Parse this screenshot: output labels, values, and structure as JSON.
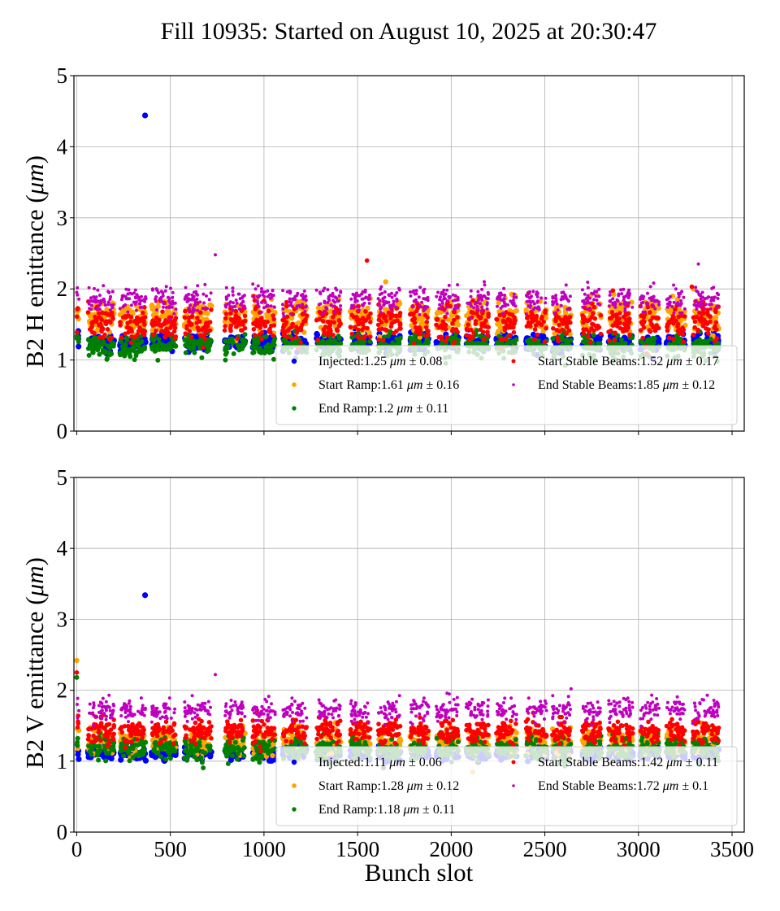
{
  "title": "Fill 10935: Started on August 10, 2025 at 20:30:47",
  "chart_data": [
    {
      "type": "scatter",
      "panel": "top",
      "ylabel_prefix": "B2 H emittance (",
      "ylabel_unit": "μm",
      "ylabel_suffix": ")",
      "xlabel": "",
      "xlim": [
        -15,
        3565
      ],
      "ylim": [
        0,
        5
      ],
      "xticks": [
        0,
        500,
        1000,
        1500,
        2000,
        2500,
        3000,
        3500
      ],
      "xtick_labels_visible": false,
      "yticks": [
        0,
        1,
        2,
        3,
        4,
        5
      ],
      "grid": true,
      "legend_placement": "lower-right",
      "legend_columns": 2,
      "series": [
        {
          "name": "Injected",
          "mean": 1.25,
          "std": 0.08,
          "color": "#0000ff",
          "label_mean": "Injected:1.25 ",
          "label_std": " ± 0.08"
        },
        {
          "name": "Start Ramp",
          "mean": 1.61,
          "std": 0.16,
          "color": "#ffa500",
          "label_mean": "Start Ramp:1.61 ",
          "label_std": " ± 0.16"
        },
        {
          "name": "End Ramp",
          "mean": 1.2,
          "std": 0.11,
          "color": "#008000",
          "label_mean": "End Ramp:1.2 ",
          "label_std": " ± 0.11"
        },
        {
          "name": "Start Stable Beams",
          "mean": 1.52,
          "std": 0.17,
          "color": "#ff0000",
          "label_mean": "Start Stable Beams:1.52 ",
          "label_std": " ± 0.17"
        },
        {
          "name": "End Stable Beams",
          "mean": 1.85,
          "std": 0.12,
          "color": "#bf00bf",
          "label_mean": "End Stable Beams:1.85 ",
          "label_std": " ± 0.12"
        }
      ],
      "outliers": [
        {
          "series": "Injected",
          "x": 365,
          "y": 4.44
        },
        {
          "series": "End Stable Beams",
          "x": 740,
          "y": 2.48
        },
        {
          "series": "Start Stable Beams",
          "x": 1550,
          "y": 2.4
        },
        {
          "series": "Start Ramp",
          "x": 1650,
          "y": 2.1
        },
        {
          "series": "End Stable Beams",
          "x": 3320,
          "y": 2.35
        },
        {
          "series": "Start Stable Beams",
          "x": 3285,
          "y": 2.03
        }
      ]
    },
    {
      "type": "scatter",
      "panel": "bottom",
      "ylabel_prefix": "B2 V emittance (",
      "ylabel_unit": "μm",
      "ylabel_suffix": ")",
      "xlabel": "Bunch slot",
      "xlim": [
        -15,
        3565
      ],
      "ylim": [
        0,
        5
      ],
      "xticks": [
        0,
        500,
        1000,
        1500,
        2000,
        2500,
        3000,
        3500
      ],
      "xtick_labels_visible": true,
      "yticks": [
        0,
        1,
        2,
        3,
        4,
        5
      ],
      "grid": true,
      "legend_placement": "lower-right",
      "legend_columns": 2,
      "series": [
        {
          "name": "Injected",
          "mean": 1.11,
          "std": 0.06,
          "color": "#0000ff",
          "label_mean": "Injected:1.11 ",
          "label_std": " ± 0.06"
        },
        {
          "name": "Start Ramp",
          "mean": 1.28,
          "std": 0.12,
          "color": "#ffa500",
          "label_mean": "Start Ramp:1.28 ",
          "label_std": " ± 0.12"
        },
        {
          "name": "End Ramp",
          "mean": 1.18,
          "std": 0.11,
          "color": "#008000",
          "label_mean": "End Ramp:1.18 ",
          "label_std": " ± 0.11"
        },
        {
          "name": "Start Stable Beams",
          "mean": 1.42,
          "std": 0.11,
          "color": "#ff0000",
          "label_mean": "Start Stable Beams:1.42 ",
          "label_std": " ± 0.11"
        },
        {
          "name": "End Stable Beams",
          "mean": 1.72,
          "std": 0.1,
          "color": "#bf00bf",
          "label_mean": "End Stable Beams:1.72 ",
          "label_std": " ± 0.1"
        }
      ],
      "outliers": [
        {
          "series": "Injected",
          "x": 365,
          "y": 3.34
        },
        {
          "series": "Start Ramp",
          "x": 0,
          "y": 2.42
        },
        {
          "series": "Start Stable Beams",
          "x": 0,
          "y": 2.25
        },
        {
          "series": "End Ramp",
          "x": 0,
          "y": 2.18
        },
        {
          "series": "End Stable Beams",
          "x": 740,
          "y": 2.22
        },
        {
          "series": "End Stable Beams",
          "x": 2640,
          "y": 2.02
        }
      ]
    }
  ],
  "bunch_trains": [
    [
      0,
      12
    ],
    [
      60,
      200
    ],
    [
      230,
      370
    ],
    [
      400,
      530
    ],
    [
      575,
      720
    ],
    [
      790,
      900
    ],
    [
      940,
      1060
    ],
    [
      1100,
      1230
    ],
    [
      1280,
      1410
    ],
    [
      1460,
      1570
    ],
    [
      1610,
      1730
    ],
    [
      1780,
      1880
    ],
    [
      1920,
      2040
    ],
    [
      2080,
      2200
    ],
    [
      2240,
      2350
    ],
    [
      2400,
      2510
    ],
    [
      2540,
      2640
    ],
    [
      2700,
      2800
    ],
    [
      2840,
      2970
    ],
    [
      3010,
      3110
    ],
    [
      3150,
      3250
    ],
    [
      3290,
      3430
    ]
  ]
}
